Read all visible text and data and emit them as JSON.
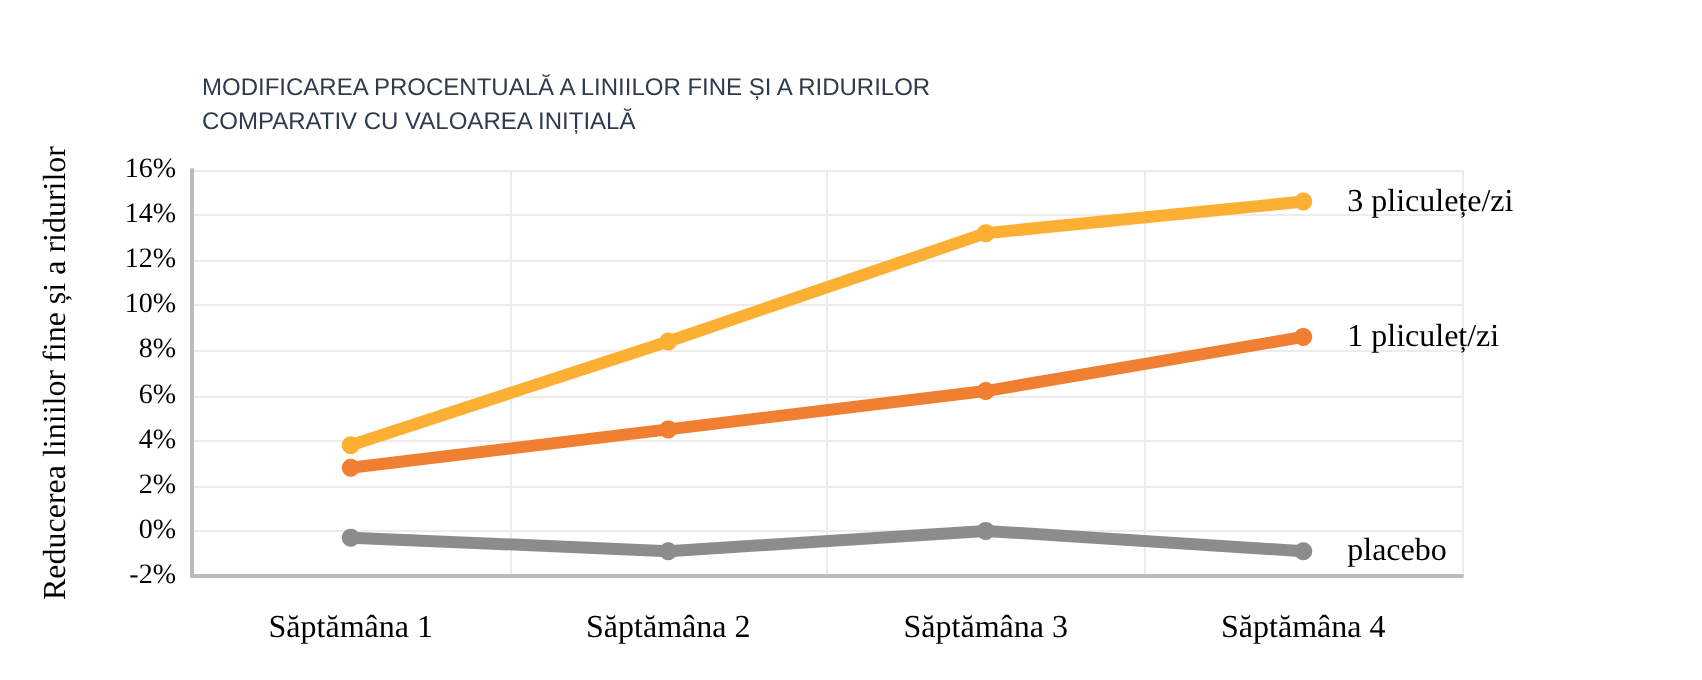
{
  "chart_data": {
    "type": "line",
    "title": "MODIFICAREA PROCENTUALĂ A LINIILOR FINE ȘI A RIDURILOR\nCOMPARATIV CU VALOAREA INIȚIALĂ",
    "ylabel": "Reducerea liniilor fine și a ridurilor",
    "categories": [
      "Săptămâna 1",
      "Săptămâna 2",
      "Săptămâna 3",
      "Săptămâna 4"
    ],
    "series": [
      {
        "name": "3 pliculețe/zi",
        "color": "#fbb034",
        "values": [
          3.8,
          8.4,
          13.2,
          14.6
        ]
      },
      {
        "name": "1 pliculeț/zi",
        "color": "#f07f32",
        "values": [
          2.8,
          4.5,
          6.2,
          8.6
        ]
      },
      {
        "name": "placebo",
        "color": "#8c8c8c",
        "values": [
          -0.3,
          -0.9,
          0,
          -0.9
        ]
      }
    ],
    "ylim": [
      -2,
      16
    ],
    "yticks": [
      {
        "value": -2,
        "label": "-2%"
      },
      {
        "value": 0,
        "label": "0%"
      },
      {
        "value": 2,
        "label": "2%"
      },
      {
        "value": 4,
        "label": "4%"
      },
      {
        "value": 6,
        "label": "6%"
      },
      {
        "value": 8,
        "label": "8%"
      },
      {
        "value": 10,
        "label": "10%"
      },
      {
        "value": 12,
        "label": "12%"
      },
      {
        "value": 14,
        "label": "14%"
      },
      {
        "value": 16,
        "label": "16%"
      }
    ],
    "grid": true,
    "marker": "circle",
    "line_style": "solid",
    "legend": false
  }
}
